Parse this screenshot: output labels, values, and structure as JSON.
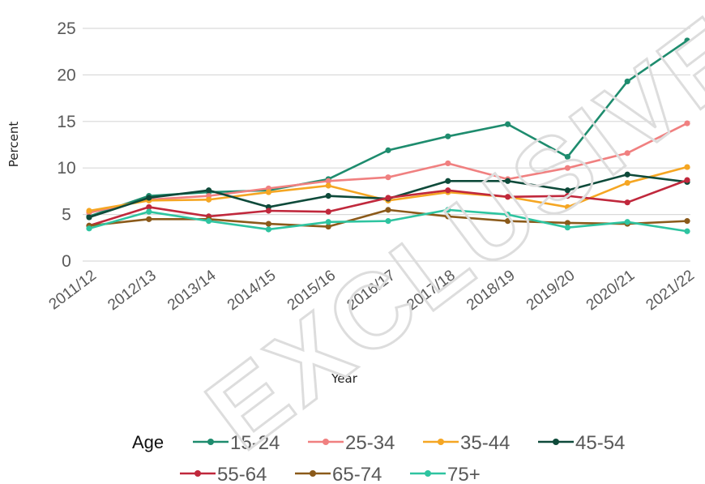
{
  "watermark": "EXCLUSIVELY RELEASED",
  "chart_data": {
    "type": "line",
    "title": "",
    "xlabel": "Year",
    "ylabel": "Percent",
    "ylim": [
      0,
      25
    ],
    "yticks": [
      0,
      5,
      10,
      15,
      20,
      25
    ],
    "grid": true,
    "legend": {
      "title": "Age",
      "placement": "bottom"
    },
    "categories": [
      "2011/12",
      "2012/13",
      "2013/14",
      "2014/15",
      "2015/16",
      "2016/17",
      "2017/18",
      "2018/19",
      "2019/20",
      "2020/21",
      "2021/22"
    ],
    "series": [
      {
        "name": "15-24",
        "color": "#1e8c6e",
        "values": [
          4.8,
          7.0,
          7.4,
          7.6,
          8.8,
          11.9,
          13.4,
          14.7,
          11.2,
          19.3,
          23.7
        ]
      },
      {
        "name": "25-34",
        "color": "#f08080",
        "values": [
          5.2,
          6.6,
          7.0,
          7.8,
          8.6,
          9.0,
          10.5,
          8.8,
          10.0,
          11.6,
          14.8
        ]
      },
      {
        "name": "35-44",
        "color": "#f5a623",
        "values": [
          5.4,
          6.5,
          6.6,
          7.4,
          8.1,
          6.5,
          7.4,
          6.9,
          5.8,
          8.4,
          10.1
        ]
      },
      {
        "name": "45-54",
        "color": "#0e4a3a",
        "values": [
          4.7,
          6.8,
          7.6,
          5.8,
          7.0,
          6.7,
          8.6,
          8.6,
          7.6,
          9.3,
          8.5
        ]
      },
      {
        "name": "55-64",
        "color": "#c0283c",
        "values": [
          3.8,
          5.8,
          4.8,
          5.4,
          5.3,
          6.8,
          7.6,
          6.9,
          7.0,
          6.3,
          8.7
        ]
      },
      {
        "name": "65-74",
        "color": "#8b5a1a",
        "values": [
          3.8,
          4.5,
          4.5,
          4.0,
          3.7,
          5.5,
          4.8,
          4.3,
          4.1,
          4.0,
          4.3
        ]
      },
      {
        "name": "75+",
        "color": "#2ec4a0",
        "values": [
          3.5,
          5.3,
          4.3,
          3.4,
          4.2,
          4.3,
          5.5,
          5.0,
          3.6,
          4.2,
          3.2
        ]
      }
    ]
  }
}
